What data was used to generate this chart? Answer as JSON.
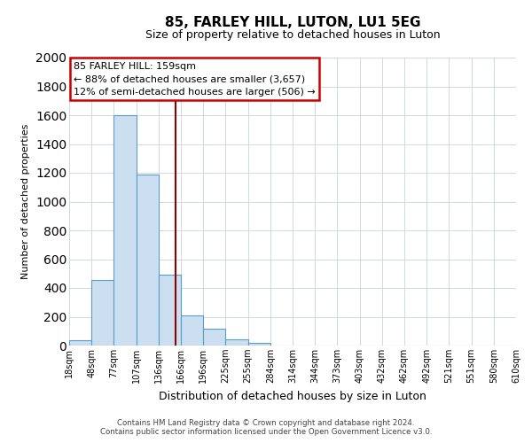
{
  "title": "85, FARLEY HILL, LUTON, LU1 5EG",
  "subtitle": "Size of property relative to detached houses in Luton",
  "xlabel": "Distribution of detached houses by size in Luton",
  "ylabel": "Number of detached properties",
  "bin_labels": [
    "18sqm",
    "48sqm",
    "77sqm",
    "107sqm",
    "136sqm",
    "166sqm",
    "196sqm",
    "225sqm",
    "255sqm",
    "284sqm",
    "314sqm",
    "344sqm",
    "373sqm",
    "403sqm",
    "432sqm",
    "462sqm",
    "492sqm",
    "521sqm",
    "551sqm",
    "580sqm",
    "610sqm"
  ],
  "bar_values": [
    35,
    455,
    1600,
    1190,
    490,
    210,
    120,
    45,
    20,
    0,
    0,
    0,
    0,
    0,
    0,
    0,
    0,
    0,
    0,
    0
  ],
  "bar_color": "#ccdff0",
  "bar_edge_color": "#5a9dc8",
  "ylim": [
    0,
    2000
  ],
  "yticks": [
    0,
    200,
    400,
    600,
    800,
    1000,
    1200,
    1400,
    1600,
    1800,
    2000
  ],
  "vline_color": "#8b0000",
  "annotation_title": "85 FARLEY HILL: 159sqm",
  "annotation_line1": "← 88% of detached houses are smaller (3,657)",
  "annotation_line2": "12% of semi-detached houses are larger (506) →",
  "annotation_box_color": "#ffffff",
  "annotation_box_edge": "#cc0000",
  "footnote1": "Contains HM Land Registry data © Crown copyright and database right 2024.",
  "footnote2": "Contains public sector information licensed under the Open Government Licence v3.0.",
  "background_color": "#ffffff",
  "grid_color": "#d0d8e8"
}
